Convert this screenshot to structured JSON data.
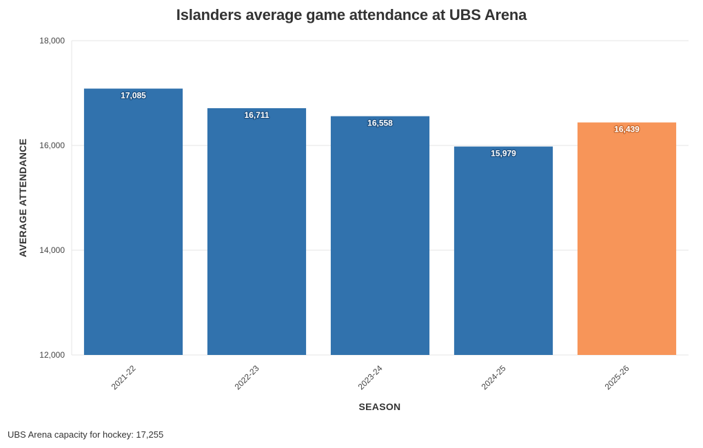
{
  "chart_data": {
    "type": "bar",
    "title": "Islanders average game attendance at UBS Arena",
    "xlabel": "SEASON",
    "ylabel": "AVERAGE ATTENDANCE",
    "categories": [
      "2021-22",
      "2022-23",
      "2023-24",
      "2024-25",
      "2025-26"
    ],
    "values": [
      17085,
      16711,
      16558,
      15979,
      16439
    ],
    "value_labels": [
      "17,085",
      "16,711",
      "16,558",
      "15,979",
      "16,439"
    ],
    "ylim": [
      12000,
      18000
    ],
    "yticks": [
      12000,
      14000,
      16000,
      18000
    ],
    "ytick_labels": [
      "12,000",
      "14,000",
      "16,000",
      "18,000"
    ],
    "grid": true,
    "bar_colors": [
      "#3172ad",
      "#3172ad",
      "#3172ad",
      "#3172ad",
      "#f79559"
    ],
    "label_outline_colors": [
      "#1d4f80",
      "#1d4f80",
      "#1d4f80",
      "#1d4f80",
      "#c8692f"
    ]
  },
  "footnote": "UBS Arena capacity for hockey: 17,255"
}
